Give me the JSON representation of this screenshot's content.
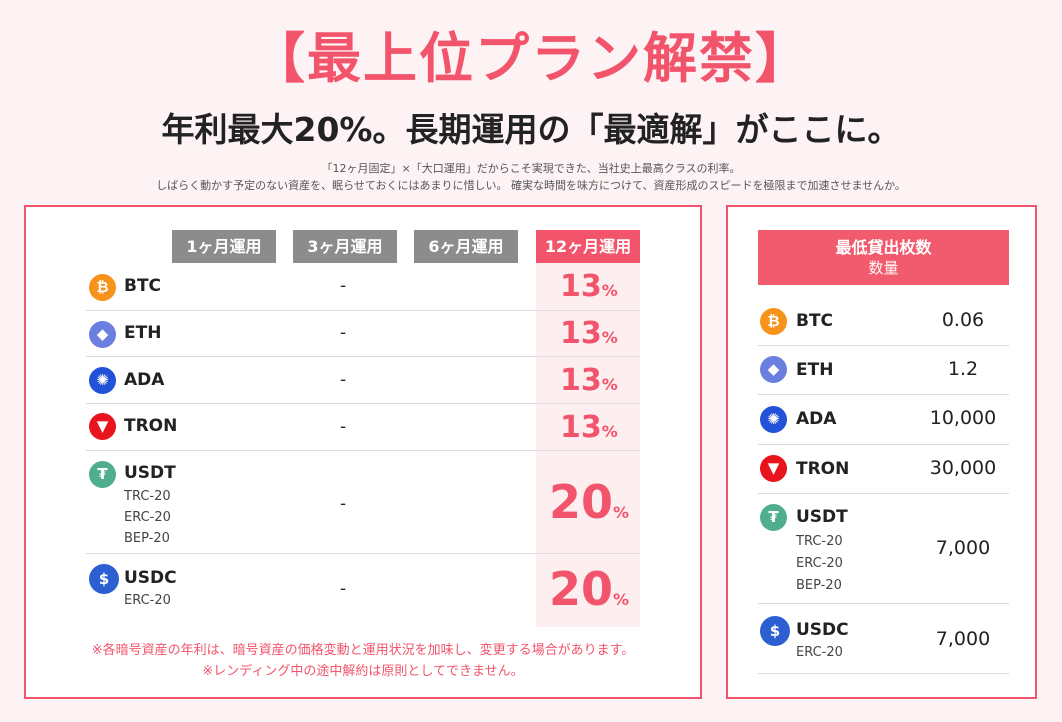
{
  "header": {
    "headline": "【最上位プラン解禁】",
    "subhead": "年利最大20%。長期運用の「最適解」がここに。",
    "desc_line1": "「12ヶ月固定」×「大口運用」だからこそ実現できた、当社史上最高クラスの利率。",
    "desc_line2": "しばらく動かす予定のない資産を、眠らせておくにはあまりに惜しい。 確実な時間を味方につけて、資産形成のスピードを極限まで加速させませんか。"
  },
  "rates_table": {
    "tabs": [
      "1ヶ月運用",
      "3ヶ月運用",
      "6ヶ月運用",
      "12ヶ月運用"
    ],
    "active_tab": "12ヶ月運用",
    "pct_symbol": "%",
    "rows": [
      {
        "coin": "BTC",
        "subs": [],
        "dash": "-",
        "rate": "13",
        "icon": "btc-icon"
      },
      {
        "coin": "ETH",
        "subs": [],
        "dash": "-",
        "rate": "13",
        "icon": "eth-icon"
      },
      {
        "coin": "ADA",
        "subs": [],
        "dash": "-",
        "rate": "13",
        "icon": "ada-icon"
      },
      {
        "coin": "TRON",
        "subs": [],
        "dash": "-",
        "rate": "13",
        "icon": "tron-icon"
      },
      {
        "coin": "USDT",
        "subs": [
          "TRC-20",
          "ERC-20",
          "BEP-20"
        ],
        "dash": "-",
        "rate": "20",
        "icon": "usdt-icon"
      },
      {
        "coin": "USDC",
        "subs": [
          "ERC-20"
        ],
        "dash": "-",
        "rate": "20",
        "icon": "usdc-icon"
      }
    ],
    "note1": "※各暗号資産の年利は、暗号資産の価格変動と運用状況を加味し、変更する場合があります。",
    "note2": "※レンディング中の途中解約は原則としてできません。"
  },
  "min_table": {
    "title": "最低貸出枚数",
    "subtitle": "数量",
    "rows": [
      {
        "coin": "BTC",
        "subs": [],
        "value": "0.06"
      },
      {
        "coin": "ETH",
        "subs": [],
        "value": "1.2"
      },
      {
        "coin": "ADA",
        "subs": [],
        "value": "10,000"
      },
      {
        "coin": "TRON",
        "subs": [],
        "value": "30,000"
      },
      {
        "coin": "USDT",
        "subs": [
          "TRC-20",
          "ERC-20",
          "BEP-20"
        ],
        "value": "7,000"
      },
      {
        "coin": "USDC",
        "subs": [
          "ERC-20"
        ],
        "value": "7,000"
      }
    ]
  },
  "colors": {
    "accent": "#f2546b",
    "tab_inactive": "#8c8c8c",
    "highlight": "#fdeef0"
  }
}
